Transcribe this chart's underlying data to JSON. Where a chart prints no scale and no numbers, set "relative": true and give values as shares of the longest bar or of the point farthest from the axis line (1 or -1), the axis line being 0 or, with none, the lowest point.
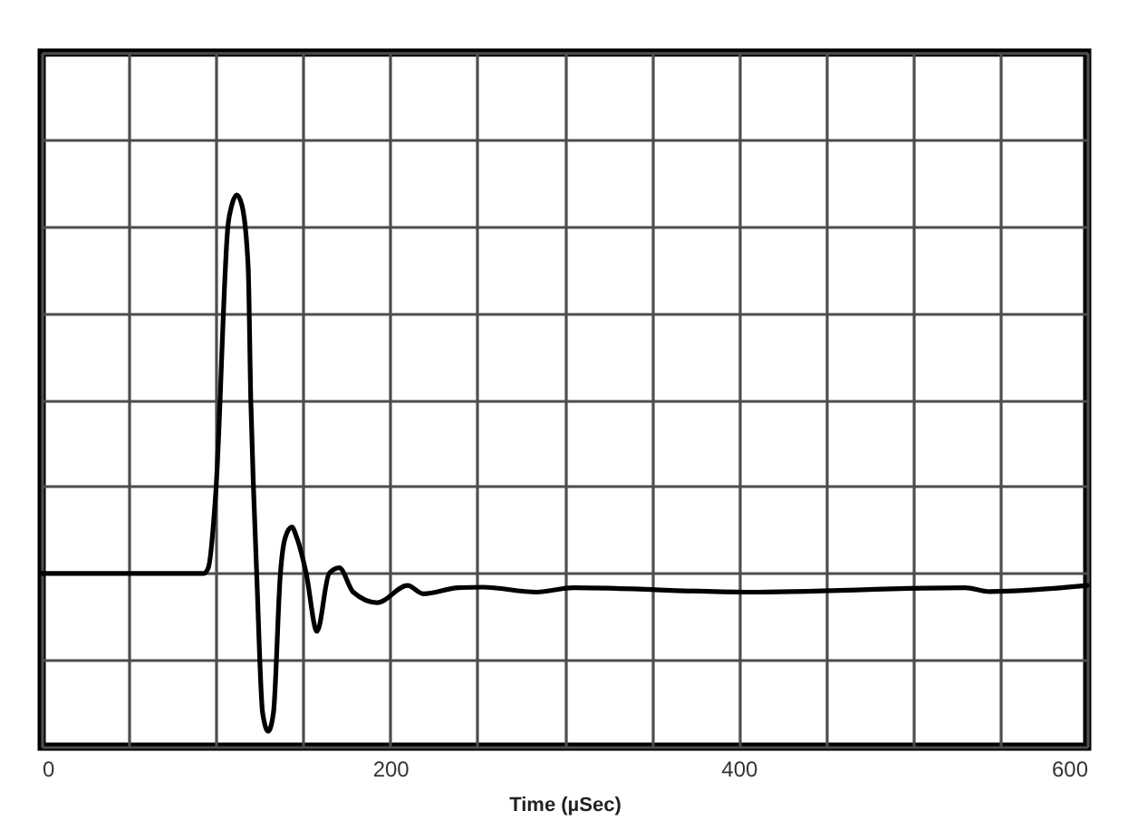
{
  "chart_data": {
    "type": "line",
    "xlabel": "Time (µSec)",
    "x": [
      0,
      93,
      95.6,
      100,
      107,
      109,
      112,
      115,
      118.5,
      120,
      121.6,
      123.4,
      126.8,
      130,
      133,
      137,
      139.6,
      143.5,
      146.6,
      151.8,
      158,
      165,
      170.8,
      178.8,
      192.6,
      210,
      219,
      239,
      253,
      284,
      305,
      405,
      530,
      544,
      600
    ],
    "series": [
      {
        "color": "#000000",
        "values": [
          0.314,
          0.314,
          0.324,
          0.465,
          0.947,
          0.98,
          1.0,
          0.98,
          0.869,
          0.629,
          0.465,
          0.313,
          0.061,
          0.028,
          0.061,
          0.314,
          0.377,
          0.398,
          0.377,
          0.314,
          0.209,
          0.314,
          0.324,
          0.28,
          0.261,
          0.292,
          0.277,
          0.288,
          0.289,
          0.28,
          0.288,
          0.28,
          0.288,
          0.281,
          0.292
        ]
      }
    ],
    "relative": true,
    "xlim": [
      0,
      600
    ],
    "xticks": [
      0,
      {
        "value": 50,
        "label": null
      },
      {
        "value": 100,
        "label": null
      },
      {
        "value": 150,
        "label": null
      },
      200,
      {
        "value": 250,
        "label": null
      },
      {
        "value": 300,
        "label": null
      },
      {
        "value": 350,
        "label": null
      },
      400,
      {
        "value": 450,
        "label": null
      },
      {
        "value": 500,
        "label": null
      },
      {
        "value": 550,
        "label": null
      },
      600
    ],
    "grid": true
  }
}
